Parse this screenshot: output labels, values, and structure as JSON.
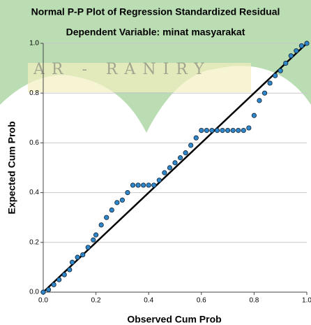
{
  "chart_data": {
    "type": "scatter",
    "title": "Normal P-P Plot of Regression Standardized Residual",
    "subtitle": "Dependent Variable: minat masyarakat",
    "watermark": "AR - RANIRY",
    "x_label": "Observed Cum Prob",
    "y_label": "Expected Cum Prob",
    "xlim": [
      0,
      1
    ],
    "ylim": [
      0,
      1
    ],
    "xticks": [
      {
        "value": 0,
        "label": "0.0"
      },
      0.2,
      0.4,
      0.6,
      0.8,
      {
        "value": 1,
        "label": "1.0"
      }
    ],
    "yticks": [
      {
        "value": 0,
        "label": "0.0"
      },
      0.2,
      0.4,
      0.6,
      0.8,
      {
        "value": 1,
        "label": "1.0"
      }
    ],
    "grid": true,
    "color": "#2f86c8",
    "line_color": "#000000",
    "x": [
      0.0,
      0.02,
      0.04,
      0.06,
      0.08,
      0.1,
      0.11,
      0.13,
      0.15,
      0.17,
      0.19,
      0.2,
      0.22,
      0.24,
      0.26,
      0.28,
      0.3,
      0.32,
      0.34,
      0.36,
      0.38,
      0.4,
      0.42,
      0.44,
      0.46,
      0.48,
      0.5,
      0.52,
      0.54,
      0.56,
      0.58,
      0.6,
      0.62,
      0.64,
      0.66,
      0.68,
      0.7,
      0.72,
      0.74,
      0.76,
      0.78,
      0.8,
      0.82,
      0.84,
      0.86,
      0.88,
      0.9,
      0.92,
      0.94,
      0.96,
      0.98,
      1.0
    ],
    "y": [
      0.0,
      0.01,
      0.03,
      0.05,
      0.07,
      0.09,
      0.12,
      0.14,
      0.15,
      0.18,
      0.21,
      0.23,
      0.27,
      0.3,
      0.33,
      0.36,
      0.37,
      0.4,
      0.43,
      0.43,
      0.43,
      0.43,
      0.43,
      0.45,
      0.48,
      0.5,
      0.52,
      0.54,
      0.56,
      0.59,
      0.62,
      0.65,
      0.65,
      0.65,
      0.65,
      0.65,
      0.65,
      0.65,
      0.65,
      0.65,
      0.66,
      0.71,
      0.77,
      0.8,
      0.84,
      0.87,
      0.89,
      0.92,
      0.95,
      0.97,
      0.99,
      1.0
    ]
  }
}
